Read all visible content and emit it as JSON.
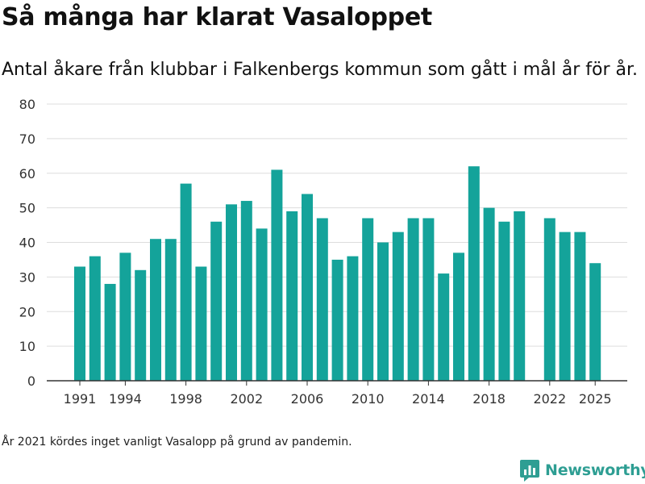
{
  "title": "Så många har klarat Vasaloppet",
  "subtitle": "Antal åkare från klubbar i Falkenbergs kommun som gått i mål år för år.",
  "footnote": "År 2021 kördes inget vanligt Vasalopp på grund av pandemin.",
  "brand": {
    "name": "Newsworthy",
    "logo_icon": "bar-chart-speech-bubble-icon"
  },
  "colors": {
    "bar": "#14a39a",
    "grid": "#dddddd",
    "axis": "#333333",
    "brand": "#2e9e93"
  },
  "chart_data": {
    "type": "bar",
    "title": "Så många har klarat Vasaloppet",
    "xlabel": "",
    "ylabel": "",
    "ylim": [
      0,
      80
    ],
    "yticks": [
      0,
      10,
      20,
      30,
      40,
      50,
      60,
      70,
      80
    ],
    "xticks": [
      "1991",
      "1994",
      "1998",
      "2002",
      "2006",
      "2010",
      "2014",
      "2018",
      "2022",
      "2025"
    ],
    "grid": true,
    "x": [
      1991,
      1992,
      1993,
      1994,
      1995,
      1996,
      1997,
      1998,
      1999,
      2000,
      2001,
      2002,
      2003,
      2004,
      2005,
      2006,
      2007,
      2008,
      2009,
      2010,
      2011,
      2012,
      2013,
      2014,
      2015,
      2016,
      2017,
      2018,
      2019,
      2020,
      2021,
      2022,
      2023,
      2024,
      2025
    ],
    "values": [
      33,
      36,
      28,
      37,
      32,
      41,
      41,
      57,
      33,
      46,
      51,
      52,
      44,
      61,
      49,
      54,
      47,
      35,
      36,
      47,
      40,
      43,
      47,
      47,
      31,
      37,
      62,
      50,
      46,
      49,
      null,
      47,
      43,
      43,
      34
    ]
  }
}
